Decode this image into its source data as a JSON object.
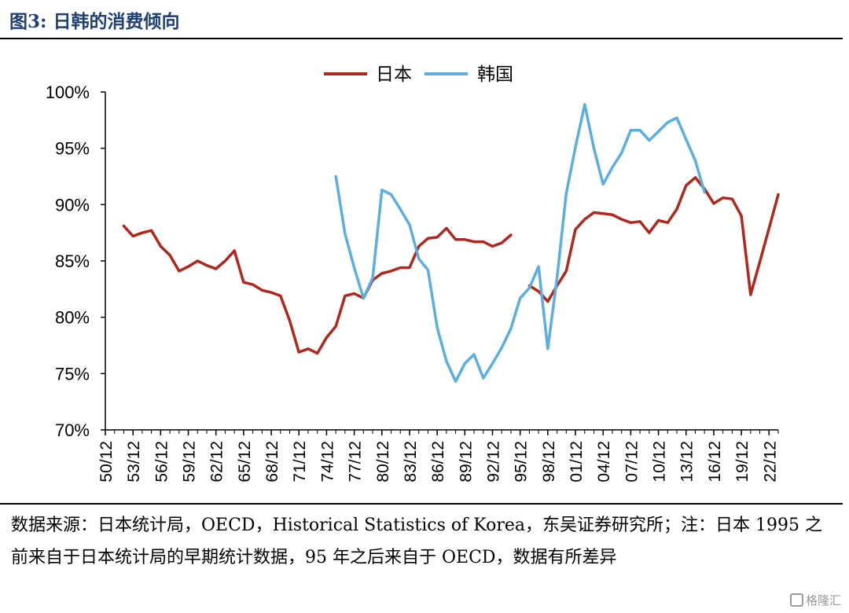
{
  "title": "图3:  日韩的消费倾向",
  "source_note": "数据来源：日本统计局，OECD，Historical Statistics of Korea，东吴证券研究所；注：日本 1995 之前来自于日本统计局的早期统计数据，95 年之后来自于 OECD，数据有所差异",
  "watermark": "格隆汇",
  "chart_data": {
    "type": "line",
    "x_start_year": 1950,
    "x_end_year": 2023,
    "x_tick_labels": [
      "50/12",
      "53/12",
      "56/12",
      "59/12",
      "62/12",
      "65/12",
      "68/12",
      "71/12",
      "74/12",
      "77/12",
      "80/12",
      "83/12",
      "86/12",
      "89/12",
      "92/12",
      "95/12",
      "98/12",
      "01/12",
      "04/12",
      "07/12",
      "10/12",
      "13/12",
      "16/12",
      "19/12",
      "22/12"
    ],
    "y_tick_labels": [
      "70%",
      "75%",
      "80%",
      "85%",
      "90%",
      "95%",
      "100%"
    ],
    "y_ticks": [
      70,
      75,
      80,
      85,
      90,
      95,
      100
    ],
    "ylim": [
      70,
      100
    ],
    "legend_position": "top-center",
    "series": [
      {
        "name": "日本",
        "color": "#b2261c",
        "segments": [
          {
            "start_year": 1952,
            "values": [
              88.1,
              87.2,
              87.5,
              87.7,
              86.3,
              85.5,
              84.1,
              84.5,
              85.0,
              84.6,
              84.3,
              85.0,
              85.9,
              83.1,
              82.9,
              82.4,
              82.2,
              81.9,
              79.7,
              76.9,
              77.2,
              76.8,
              78.2,
              79.2,
              81.9,
              82.1,
              81.7,
              83.3,
              83.9,
              84.1,
              84.4,
              84.4,
              86.3,
              87.0,
              87.1,
              87.9,
              86.9,
              86.9,
              86.7,
              86.7,
              86.3,
              86.6,
              87.3
            ]
          },
          {
            "start_year": 1996,
            "values": [
              82.8,
              82.3,
              81.4,
              82.8,
              84.1,
              87.8,
              88.7,
              89.3,
              89.2,
              89.1,
              88.7,
              88.4,
              88.5,
              87.5,
              88.6,
              88.4,
              89.6,
              91.7,
              92.4,
              91.4,
              90.1,
              90.6,
              90.5,
              89.0,
              82.0,
              84.9,
              87.9,
              90.9
            ]
          }
        ]
      },
      {
        "name": "韩国",
        "color": "#5aaee0",
        "segments": [
          {
            "start_year": 1975,
            "values": [
              92.5,
              87.4,
              84.4,
              81.7,
              83.5,
              91.3,
              90.9,
              89.6,
              88.2,
              85.2,
              84.2,
              79.1,
              76.1,
              74.3,
              75.9,
              76.7,
              74.6,
              75.9,
              77.3,
              79.0,
              81.7,
              82.6,
              84.5,
              77.2,
              83.5,
              91.0,
              95.1,
              98.9,
              95.0,
              91.8,
              93.3,
              94.6,
              96.6,
              96.6,
              95.7,
              96.5,
              97.3,
              97.7,
              95.8,
              93.9,
              91.1
            ]
          }
        ]
      }
    ]
  }
}
